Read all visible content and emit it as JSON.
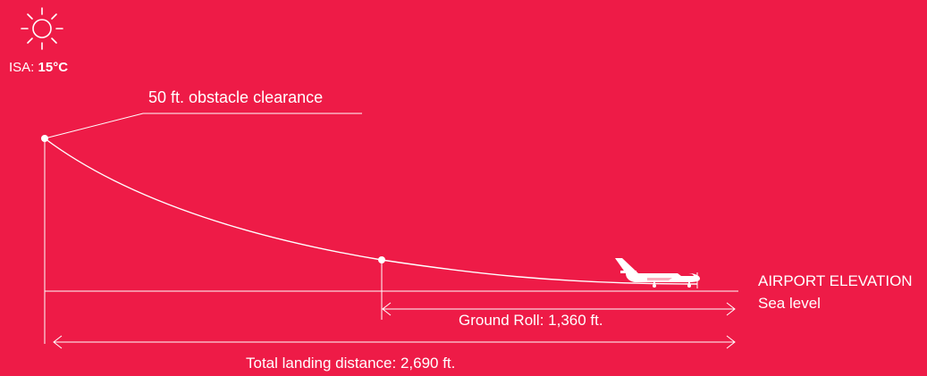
{
  "weather": {
    "icon": "sun-icon",
    "isa_prefix": "ISA: ",
    "isa_value": "15°C"
  },
  "labels": {
    "obstacle_clearance": "50 ft. obstacle clearance",
    "airport_elevation_title": "AIRPORT ELEVATION",
    "airport_elevation_value": "Sea level",
    "ground_roll": "Ground Roll: 1,360 ft.",
    "total_landing_distance": "Total landing distance: 2,690 ft."
  },
  "colors": {
    "background": "#EE1B47",
    "foreground": "#FFFFFF"
  },
  "icons": [
    "sun-icon",
    "airplane-icon"
  ]
}
